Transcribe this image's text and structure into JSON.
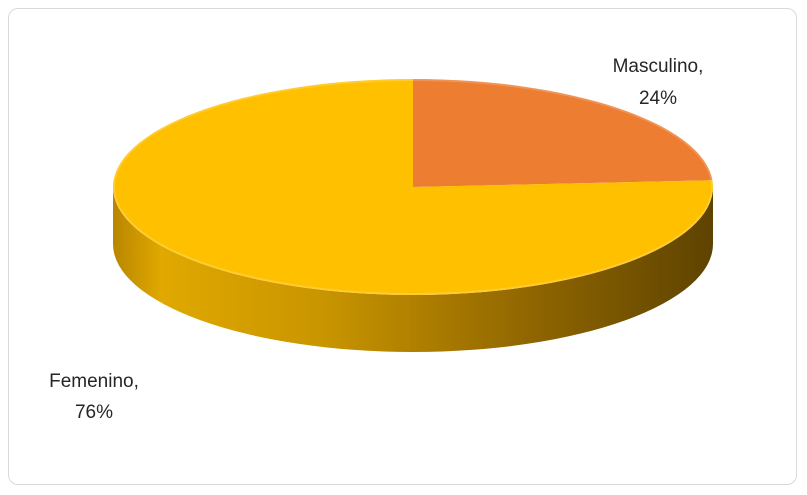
{
  "chart_data": {
    "type": "pie",
    "style": "3d",
    "title": "",
    "slices": [
      {
        "label": "Masculino",
        "value": 24,
        "color": "#ED7D31"
      },
      {
        "label": "Femenino",
        "value": 76,
        "color": "#FFC000"
      }
    ],
    "data_labels": [
      {
        "line1": "Masculino,",
        "line2": "24%"
      },
      {
        "line1": "Femenino,",
        "line2": "76%"
      }
    ],
    "legend": "none"
  }
}
